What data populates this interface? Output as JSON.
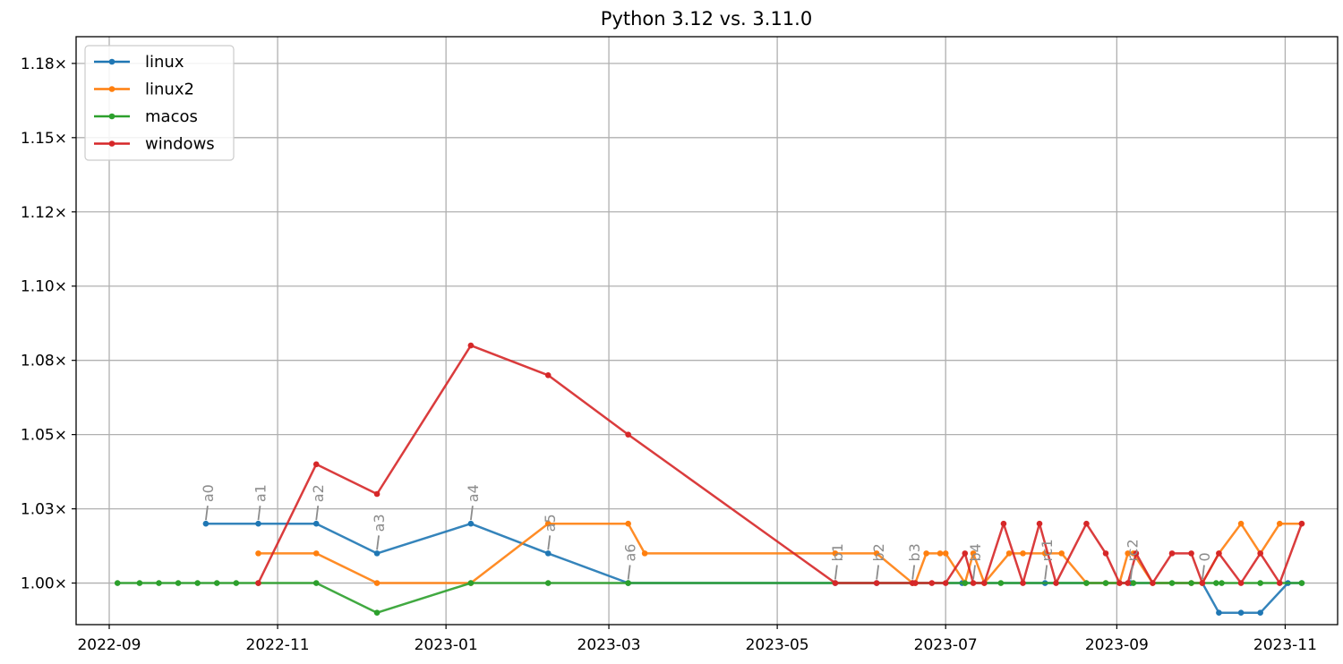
{
  "chart_data": {
    "type": "line",
    "title": "Python 3.12 vs. 3.11.0",
    "xlabel": "",
    "ylabel": "",
    "x_axis": {
      "kind": "date",
      "range": [
        "2022-08-20",
        "2023-11-20"
      ],
      "ticks": [
        "2022-09-01",
        "2022-11-01",
        "2023-01-01",
        "2023-03-01",
        "2023-05-01",
        "2023-07-01",
        "2023-09-01",
        "2023-11-01"
      ],
      "tick_labels": [
        "2022-09",
        "2022-11",
        "2023-01",
        "2023-03",
        "2023-05",
        "2023-07",
        "2023-09",
        "2023-11"
      ]
    },
    "y_axis": {
      "range": [
        0.986,
        1.184
      ],
      "ticks": [
        1.0,
        1.025,
        1.05,
        1.075,
        1.1,
        1.125,
        1.15,
        1.175
      ],
      "tick_labels": [
        "1.00×",
        "1.03×",
        "1.05×",
        "1.08×",
        "1.10×",
        "1.12×",
        "1.15×",
        "1.18×"
      ]
    },
    "grid": true,
    "legend": {
      "position": "top-left"
    },
    "series": [
      {
        "name": "linux",
        "color": "#1f77b4",
        "points": [
          [
            "2022-10-06",
            1.02
          ],
          [
            "2022-10-25",
            1.02
          ],
          [
            "2022-11-15",
            1.02
          ],
          [
            "2022-12-07",
            1.01
          ],
          [
            "2023-01-10",
            1.02
          ],
          [
            "2023-02-07",
            1.01
          ],
          [
            "2023-03-08",
            1.0
          ],
          [
            "2023-05-22",
            1.0
          ],
          [
            "2023-06-06",
            1.0
          ],
          [
            "2023-06-19",
            1.0
          ],
          [
            "2023-07-07",
            1.0
          ],
          [
            "2023-08-06",
            1.0
          ],
          [
            "2023-09-06",
            1.0
          ],
          [
            "2023-10-02",
            1.0
          ],
          [
            "2023-10-08",
            0.99
          ],
          [
            "2023-10-16",
            0.99
          ],
          [
            "2023-10-23",
            0.99
          ],
          [
            "2023-11-02",
            1.0
          ],
          [
            "2023-11-07",
            1.0
          ]
        ]
      },
      {
        "name": "linux2",
        "color": "#ff7f0e",
        "points": [
          [
            "2022-10-25",
            1.01
          ],
          [
            "2022-11-15",
            1.01
          ],
          [
            "2022-12-07",
            1.0
          ],
          [
            "2023-01-10",
            1.0
          ],
          [
            "2023-02-07",
            1.02
          ],
          [
            "2023-03-08",
            1.02
          ],
          [
            "2023-03-14",
            1.01
          ],
          [
            "2023-05-22",
            1.01
          ],
          [
            "2023-06-06",
            1.01
          ],
          [
            "2023-06-19",
            1.0
          ],
          [
            "2023-06-20",
            1.0
          ],
          [
            "2023-06-24",
            1.01
          ],
          [
            "2023-06-29",
            1.01
          ],
          [
            "2023-07-01",
            1.01
          ],
          [
            "2023-07-08",
            1.0
          ],
          [
            "2023-07-11",
            1.01
          ],
          [
            "2023-07-15",
            1.0
          ],
          [
            "2023-07-24",
            1.01
          ],
          [
            "2023-07-29",
            1.01
          ],
          [
            "2023-08-06",
            1.01
          ],
          [
            "2023-08-12",
            1.01
          ],
          [
            "2023-08-21",
            1.0
          ],
          [
            "2023-08-28",
            1.0
          ],
          [
            "2023-09-02",
            1.0
          ],
          [
            "2023-09-05",
            1.01
          ],
          [
            "2023-09-07",
            1.01
          ],
          [
            "2023-09-14",
            1.0
          ],
          [
            "2023-09-28",
            1.0
          ],
          [
            "2023-10-02",
            1.0
          ],
          [
            "2023-10-08",
            1.01
          ],
          [
            "2023-10-16",
            1.02
          ],
          [
            "2023-10-23",
            1.01
          ],
          [
            "2023-10-30",
            1.02
          ],
          [
            "2023-11-07",
            1.02
          ]
        ]
      },
      {
        "name": "macos",
        "color": "#2ca02c",
        "points": [
          [
            "2022-09-04",
            1.0
          ],
          [
            "2022-09-12",
            1.0
          ],
          [
            "2022-09-19",
            1.0
          ],
          [
            "2022-09-26",
            1.0
          ],
          [
            "2022-10-03",
            1.0
          ],
          [
            "2022-10-10",
            1.0
          ],
          [
            "2022-10-17",
            1.0
          ],
          [
            "2022-10-25",
            1.0
          ],
          [
            "2022-11-15",
            1.0
          ],
          [
            "2022-12-07",
            0.99
          ],
          [
            "2023-01-10",
            1.0
          ],
          [
            "2023-02-07",
            1.0
          ],
          [
            "2023-03-08",
            1.0
          ],
          [
            "2023-07-08",
            1.0
          ],
          [
            "2023-07-21",
            1.0
          ],
          [
            "2023-08-21",
            1.0
          ],
          [
            "2023-08-28",
            1.0
          ],
          [
            "2023-09-07",
            1.0
          ],
          [
            "2023-09-21",
            1.0
          ],
          [
            "2023-09-28",
            1.0
          ],
          [
            "2023-10-07",
            1.0
          ],
          [
            "2023-10-09",
            1.0
          ],
          [
            "2023-10-23",
            1.0
          ],
          [
            "2023-11-07",
            1.0
          ]
        ]
      },
      {
        "name": "windows",
        "color": "#d62728",
        "points": [
          [
            "2022-10-25",
            1.0
          ],
          [
            "2022-11-15",
            1.04
          ],
          [
            "2022-12-07",
            1.03
          ],
          [
            "2023-01-10",
            1.08
          ],
          [
            "2023-02-07",
            1.07
          ],
          [
            "2023-03-08",
            1.05
          ],
          [
            "2023-05-22",
            1.0
          ],
          [
            "2023-06-06",
            1.0
          ],
          [
            "2023-06-19",
            1.0
          ],
          [
            "2023-06-20",
            1.0
          ],
          [
            "2023-06-26",
            1.0
          ],
          [
            "2023-07-01",
            1.0
          ],
          [
            "2023-07-08",
            1.01
          ],
          [
            "2023-07-11",
            1.0
          ],
          [
            "2023-07-15",
            1.0
          ],
          [
            "2023-07-22",
            1.02
          ],
          [
            "2023-07-29",
            1.0
          ],
          [
            "2023-08-04",
            1.02
          ],
          [
            "2023-08-10",
            1.0
          ],
          [
            "2023-08-21",
            1.02
          ],
          [
            "2023-08-28",
            1.01
          ],
          [
            "2023-09-02",
            1.0
          ],
          [
            "2023-09-05",
            1.0
          ],
          [
            "2023-09-08",
            1.01
          ],
          [
            "2023-09-14",
            1.0
          ],
          [
            "2023-09-21",
            1.01
          ],
          [
            "2023-09-28",
            1.01
          ],
          [
            "2023-10-02",
            1.0
          ],
          [
            "2023-10-08",
            1.01
          ],
          [
            "2023-10-16",
            1.0
          ],
          [
            "2023-10-23",
            1.01
          ],
          [
            "2023-10-30",
            1.0
          ],
          [
            "2023-11-07",
            1.02
          ]
        ]
      }
    ],
    "annotations": [
      {
        "text": "a0",
        "x": "2022-10-06",
        "y": 1.02
      },
      {
        "text": "a1",
        "x": "2022-10-25",
        "y": 1.02
      },
      {
        "text": "a2",
        "x": "2022-11-15",
        "y": 1.02
      },
      {
        "text": "a3",
        "x": "2022-12-07",
        "y": 1.01
      },
      {
        "text": "a4",
        "x": "2023-01-10",
        "y": 1.02
      },
      {
        "text": "a5",
        "x": "2023-02-07",
        "y": 1.01
      },
      {
        "text": "a6",
        "x": "2023-03-08",
        "y": 1.0
      },
      {
        "text": "b1",
        "x": "2023-05-22",
        "y": 1.0
      },
      {
        "text": "b2",
        "x": "2023-06-06",
        "y": 1.0
      },
      {
        "text": "b3",
        "x": "2023-06-19",
        "y": 1.0
      },
      {
        "text": "b4",
        "x": "2023-07-11",
        "y": 1.0
      },
      {
        "text": "rc1",
        "x": "2023-08-06",
        "y": 1.0
      },
      {
        "text": "rc2",
        "x": "2023-09-06",
        "y": 1.0
      },
      {
        "text": "0",
        "x": "2023-10-02",
        "y": 1.0
      }
    ]
  }
}
